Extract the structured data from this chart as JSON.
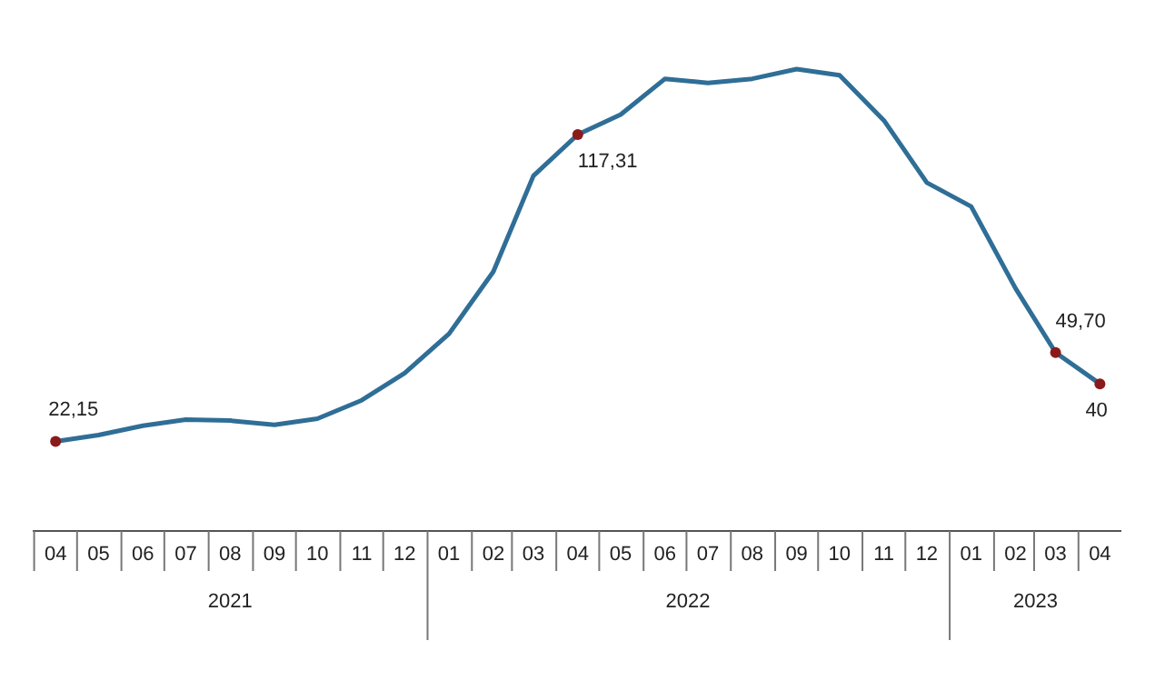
{
  "chart_data": {
    "type": "line",
    "x": [
      "2021-04",
      "2021-05",
      "2021-06",
      "2021-07",
      "2021-08",
      "2021-09",
      "2021-10",
      "2021-11",
      "2021-12",
      "2022-01",
      "2022-02",
      "2022-03",
      "2022-04",
      "2022-05",
      "2022-06",
      "2022-07",
      "2022-08",
      "2022-09",
      "2022-10",
      "2022-11",
      "2022-12",
      "2023-01",
      "2023-02",
      "2023-03",
      "2023-04"
    ],
    "series": [
      {
        "color": "#2f6e96",
        "values": [
          22.15,
          24.1,
          27,
          28.9,
          28.6,
          27.3,
          29.2,
          34.9,
          43.3,
          55.5,
          74.8,
          104.5,
          117.31,
          123.5,
          134.6,
          133.3,
          134.6,
          137.6,
          135.7,
          121.7,
          102.4,
          95,
          69.6,
          49.7,
          40
        ],
        "value_labels": [
          "22,15",
          null,
          null,
          null,
          null,
          null,
          null,
          null,
          null,
          null,
          null,
          null,
          "117,31",
          null,
          null,
          null,
          null,
          null,
          null,
          null,
          null,
          null,
          null,
          "49,70",
          "40"
        ]
      }
    ],
    "xlim": [
      "2021-03-16",
      "2023-04-16"
    ],
    "xticks": [
      {
        "value": "2021-04",
        "label": "04"
      },
      {
        "value": "2021-05",
        "label": "05"
      },
      {
        "value": "2021-06",
        "label": "06"
      },
      {
        "value": "2021-07",
        "label": "07"
      },
      {
        "value": "2021-08",
        "label": "08"
      },
      {
        "value": "2021-09",
        "label": "09"
      },
      {
        "value": "2021-10",
        "label": "10"
      },
      {
        "value": "2021-11",
        "label": "11"
      },
      {
        "value": "2021-12",
        "label": "12"
      },
      {
        "value": "2022-01",
        "label": "01"
      },
      {
        "value": "2022-02",
        "label": "02"
      },
      {
        "value": "2022-03",
        "label": "03"
      },
      {
        "value": "2022-04",
        "label": "04"
      },
      {
        "value": "2022-05",
        "label": "05"
      },
      {
        "value": "2022-06",
        "label": "06"
      },
      {
        "value": "2022-07",
        "label": "07"
      },
      {
        "value": "2022-08",
        "label": "08"
      },
      {
        "value": "2022-09",
        "label": "09"
      },
      {
        "value": "2022-10",
        "label": "10"
      },
      {
        "value": "2022-11",
        "label": "11"
      },
      {
        "value": "2022-12",
        "label": "12"
      },
      {
        "value": "2023-01",
        "label": "01"
      },
      {
        "value": "2023-02",
        "label": "02"
      },
      {
        "value": "2023-03",
        "label": "03"
      },
      {
        "value": "2023-04",
        "label": "04"
      }
    ],
    "annotations": [
      "2021",
      "2022",
      "2023"
    ],
    "grid": false
  }
}
